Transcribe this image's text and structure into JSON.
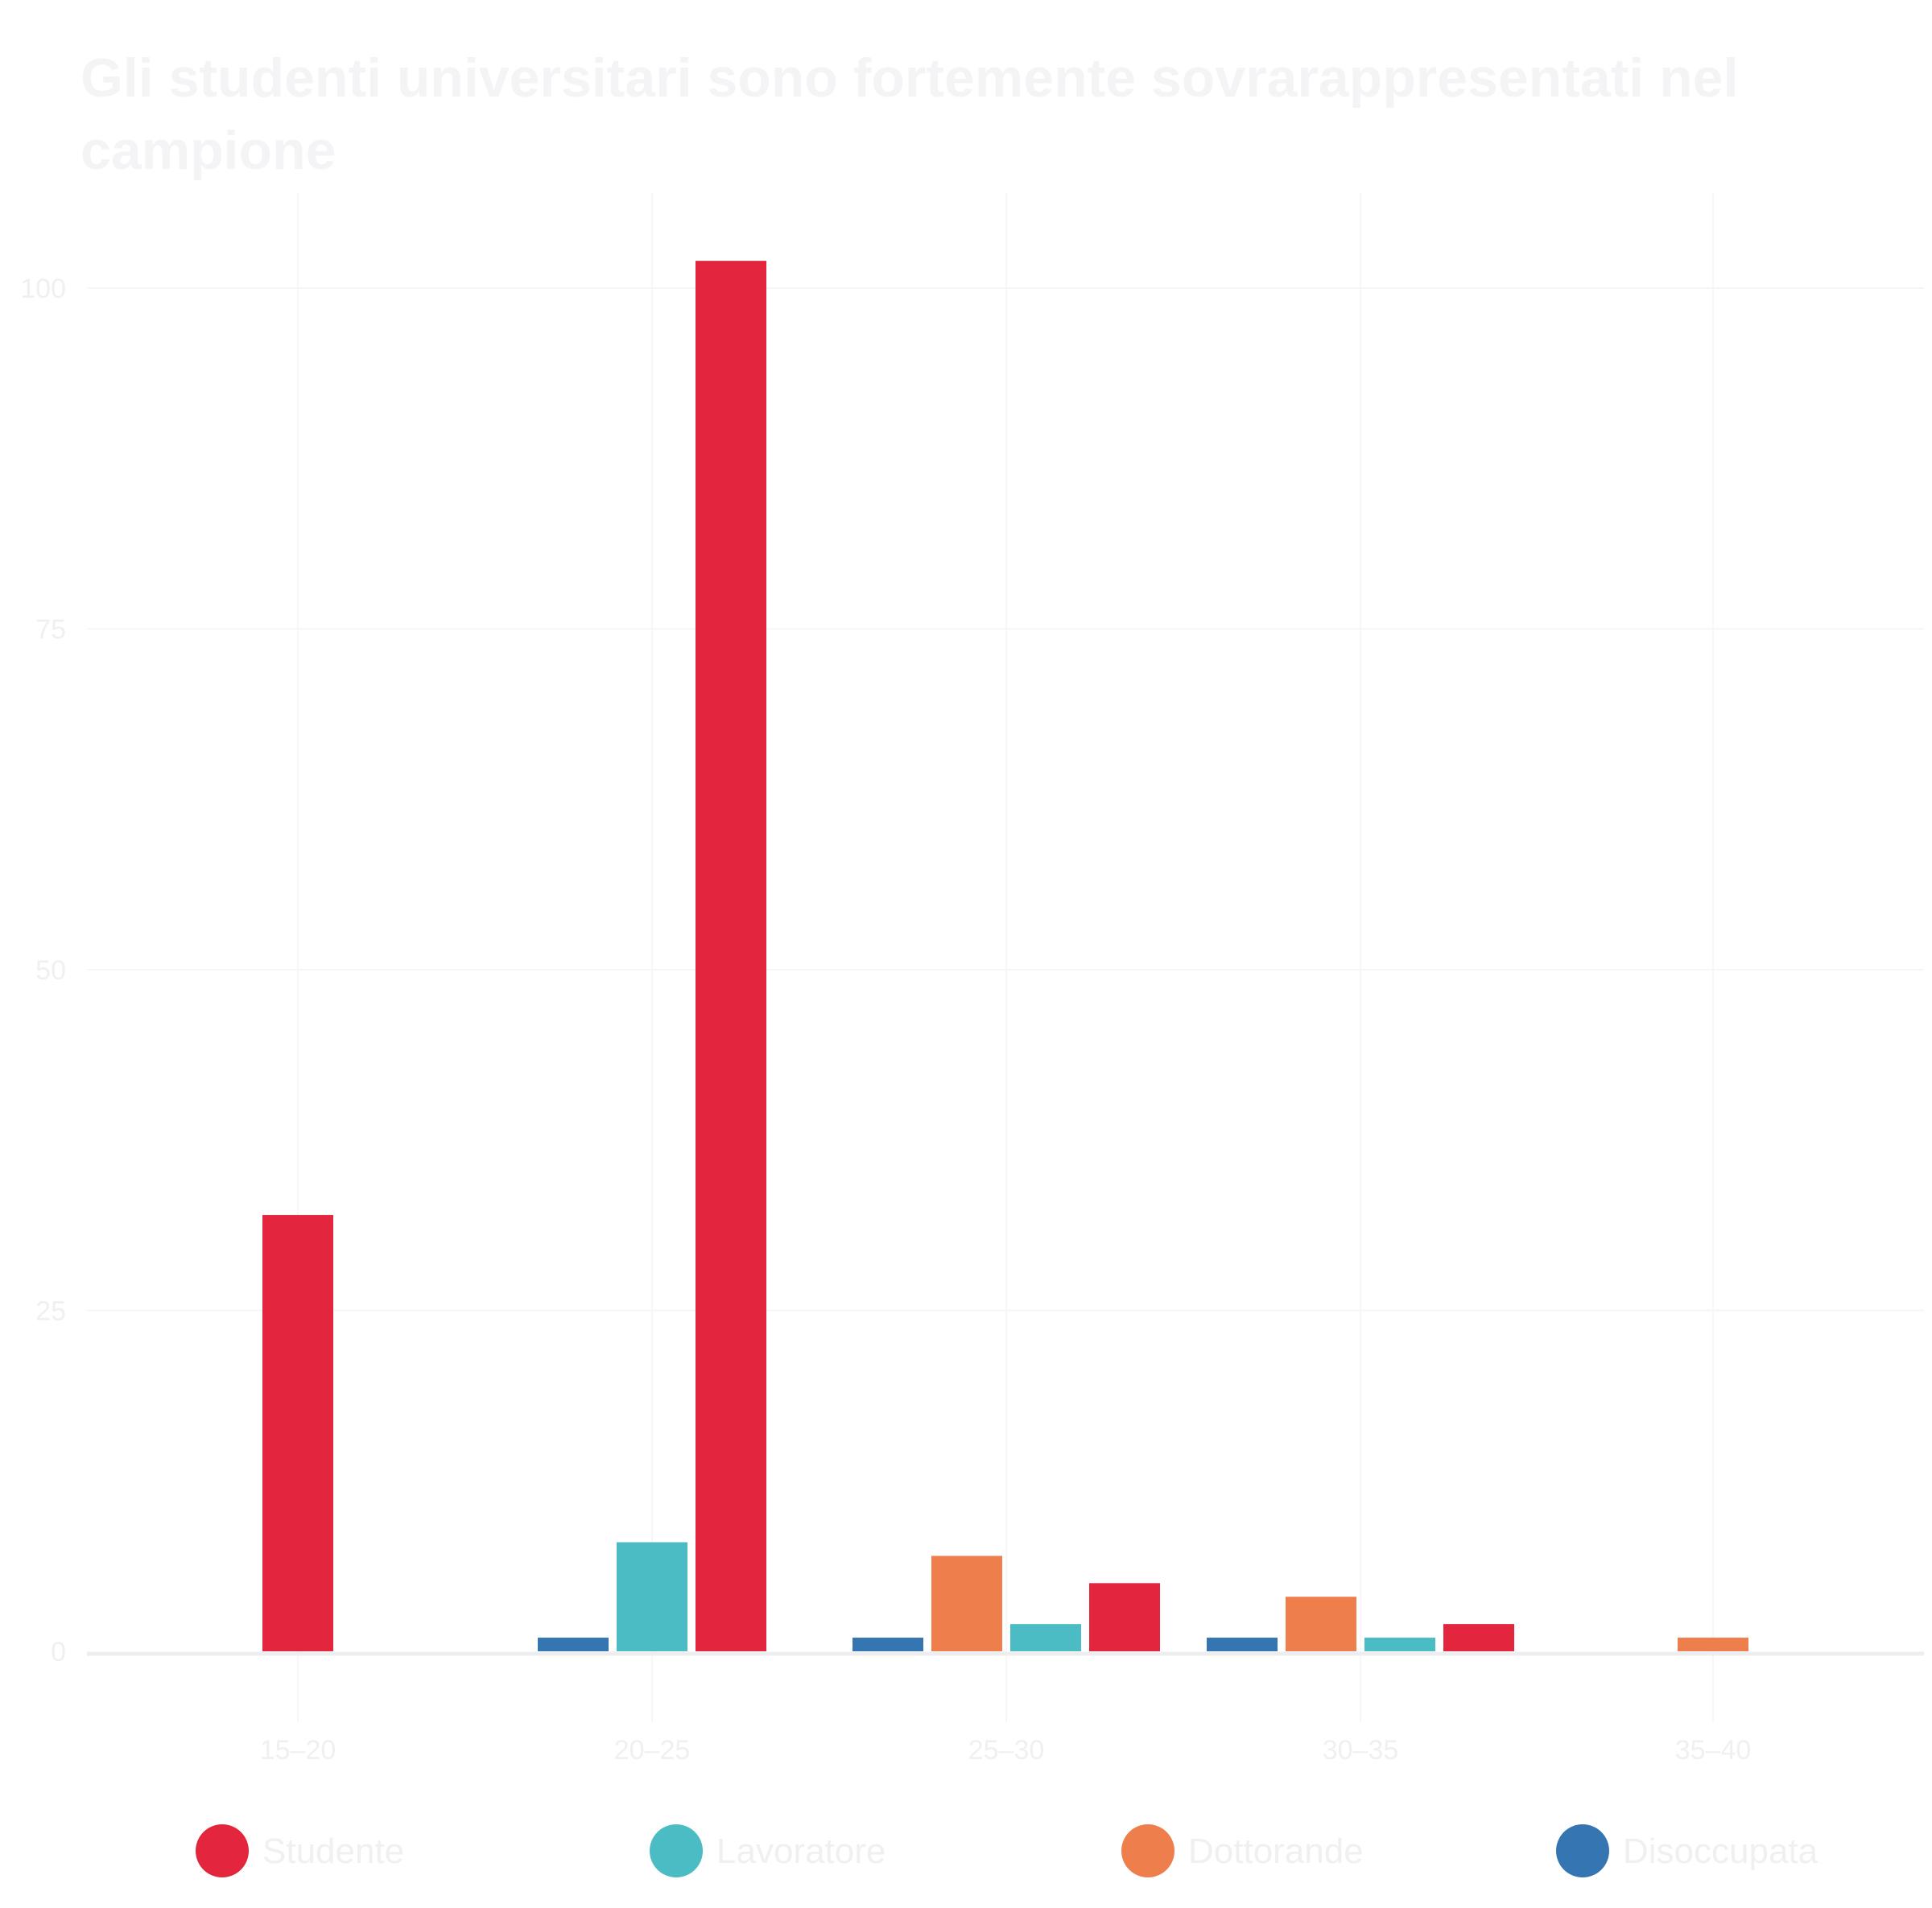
{
  "chart_data": {
    "type": "bar",
    "title": "Gli studenti universitari sono fortemente sovrarappresentati nel campione",
    "xlabel": "",
    "ylabel": "",
    "categories": [
      "15–20",
      "20–25",
      "25–30",
      "30–35",
      "35–40"
    ],
    "yticks": [
      "0",
      "25",
      "50",
      "75",
      "100"
    ],
    "ylim": [
      0,
      105
    ],
    "grid": true,
    "legend_position": "bottom",
    "series": [
      {
        "name": "Studente",
        "color": "#e3263d",
        "values": [
          32,
          102,
          5,
          2,
          0
        ]
      },
      {
        "name": "Lavoratore",
        "color": "#4bbcc4",
        "values": [
          0,
          8,
          2,
          1,
          0
        ]
      },
      {
        "name": "Dottorande",
        "color": "#ef7e4d",
        "values": [
          0,
          0,
          7,
          4,
          1
        ]
      },
      {
        "name": "Disoccupata",
        "color": "#3575b2",
        "values": [
          0,
          1,
          1,
          1,
          0
        ]
      }
    ]
  }
}
